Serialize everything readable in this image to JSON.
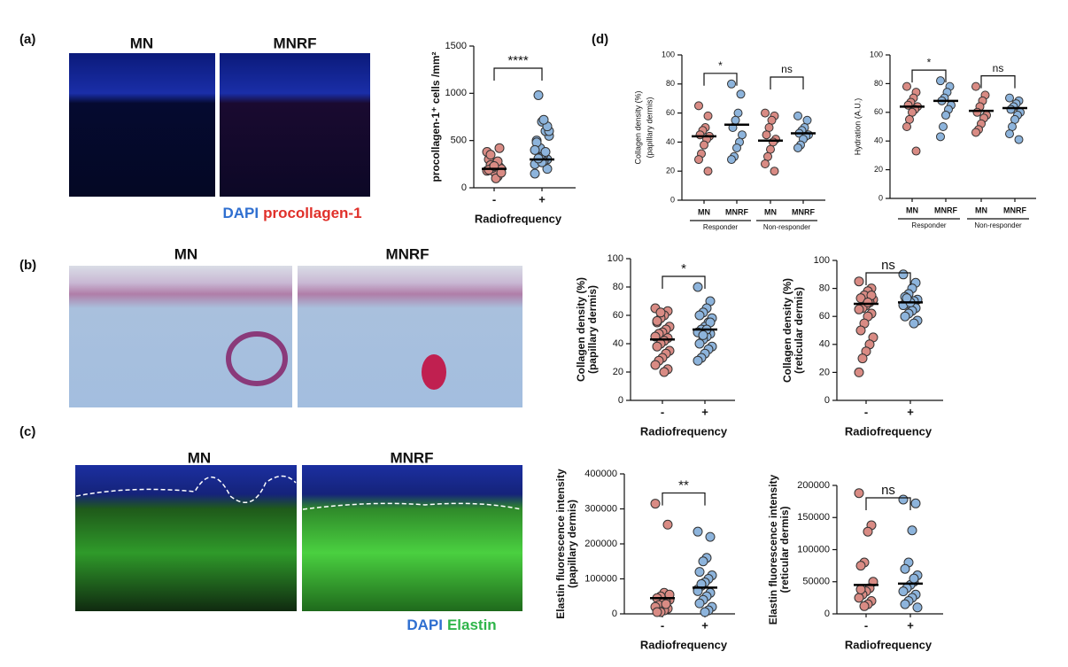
{
  "panel_labels": [
    "(a)",
    "(b)",
    "(c)",
    "(d)"
  ],
  "images": [
    {
      "title": "MN"
    },
    {
      "title": "MNRF"
    },
    {
      "title": "MN"
    },
    {
      "title": "MNRF"
    },
    {
      "title": "MN"
    },
    {
      "title": "MNRF"
    }
  ],
  "captions": [
    {
      "parts": [
        {
          "text": "DAPI",
          "color": "#2f6fd0"
        },
        {
          "text": "procollagen-1",
          "color": "#e0302a"
        }
      ]
    },
    {
      "parts": [
        {
          "text": "DAPI",
          "color": "#2f6fd0"
        },
        {
          "text": "Elastin",
          "color": "#2fb54a"
        }
      ]
    }
  ],
  "chart_data": [
    {
      "type": "dot",
      "ylabel": [
        "procollagen-1⁺ cells /mm²"
      ],
      "xlabel": "Radiofrequency",
      "categories": [
        "-",
        "+"
      ],
      "point_colors": [
        "#d98b84",
        "#8db4dc"
      ],
      "ylim": [
        0,
        1500
      ],
      "yticks": [
        0,
        500,
        1000,
        1500
      ],
      "groups": [
        {
          "values": [
            180,
            220,
            150,
            260,
            300,
            200,
            120,
            170,
            240,
            380,
            420,
            100,
            210,
            190,
            160,
            280,
            230,
            350
          ],
          "mean": 200
        },
        {
          "values": [
            250,
            300,
            350,
            420,
            500,
            550,
            600,
            700,
            980,
            150,
            200,
            280,
            320,
            480,
            600,
            380,
            270,
            310,
            400,
            650,
            720
          ],
          "mean": 300
        }
      ],
      "brackets": [
        {
          "label": "****",
          "from": 0,
          "to": 1
        }
      ]
    },
    {
      "type": "dot",
      "ylabel": [
        "Collagen  density (%)",
        "(papillary dermis)"
      ],
      "categories": [
        "MN",
        "MNRF",
        "MN",
        "MNRF"
      ],
      "group_labels": [
        "Responder",
        "Non-responder"
      ],
      "point_colors": [
        "#d98b84",
        "#8db4dc",
        "#d98b84",
        "#8db4dc"
      ],
      "ylim": [
        0,
        100
      ],
      "yticks": [
        0,
        20,
        40,
        60,
        80,
        100
      ],
      "groups": [
        {
          "values": [
            65,
            58,
            50,
            48,
            45,
            44,
            42,
            38,
            32,
            28,
            20
          ],
          "mean": 44
        },
        {
          "values": [
            80,
            73,
            60,
            55,
            50,
            45,
            40,
            36,
            30,
            28
          ],
          "mean": 52
        },
        {
          "values": [
            60,
            58,
            55,
            50,
            45,
            42,
            40,
            35,
            30,
            25,
            20
          ],
          "mean": 41
        },
        {
          "values": [
            58,
            55,
            50,
            48,
            46,
            45,
            44,
            42,
            38,
            36
          ],
          "mean": 46
        }
      ],
      "brackets": [
        {
          "label": "*",
          "from": 0,
          "to": 1
        },
        {
          "label": "ns",
          "from": 2,
          "to": 3
        }
      ]
    },
    {
      "type": "dot",
      "ylabel": [
        "Hydration (A.U.)"
      ],
      "categories": [
        "MN",
        "MNRF",
        "MN",
        "MNRF"
      ],
      "group_labels": [
        "Responder",
        "Non-responder"
      ],
      "point_colors": [
        "#d98b84",
        "#8db4dc",
        "#d98b84",
        "#8db4dc"
      ],
      "ylim": [
        0,
        100
      ],
      "yticks": [
        0,
        20,
        40,
        60,
        80,
        100
      ],
      "groups": [
        {
          "values": [
            78,
            74,
            70,
            67,
            65,
            64,
            62,
            60,
            55,
            50,
            33
          ],
          "mean": 64
        },
        {
          "values": [
            82,
            78,
            74,
            70,
            68,
            65,
            62,
            58,
            50,
            43
          ],
          "mean": 68
        },
        {
          "values": [
            78,
            72,
            68,
            64,
            60,
            58,
            56,
            52,
            48,
            46
          ],
          "mean": 61
        },
        {
          "values": [
            70,
            68,
            66,
            64,
            62,
            60,
            58,
            55,
            50,
            45,
            41
          ],
          "mean": 63
        }
      ],
      "brackets": [
        {
          "label": "*",
          "from": 0,
          "to": 1
        },
        {
          "label": "ns",
          "from": 2,
          "to": 3
        }
      ]
    },
    {
      "type": "dot",
      "ylabel": [
        "Collagen  density (%)",
        "(papillary dermis)"
      ],
      "xlabel": "Radiofrequency",
      "categories": [
        "-",
        "+"
      ],
      "point_colors": [
        "#d98b84",
        "#8db4dc"
      ],
      "ylim": [
        0,
        100
      ],
      "yticks": [
        0,
        20,
        40,
        60,
        80,
        100
      ],
      "groups": [
        {
          "values": [
            65,
            63,
            60,
            58,
            55,
            52,
            50,
            48,
            47,
            45,
            44,
            42,
            40,
            38,
            35,
            33,
            30,
            28,
            25,
            22,
            20,
            62,
            56
          ],
          "mean": 43
        },
        {
          "values": [
            80,
            70,
            65,
            62,
            60,
            58,
            55,
            52,
            50,
            48,
            47,
            45,
            43,
            40,
            38,
            36,
            33,
            30,
            28,
            55,
            50,
            46
          ],
          "mean": 50
        }
      ],
      "brackets": [
        {
          "label": "*",
          "from": 0,
          "to": 1
        }
      ]
    },
    {
      "type": "dot",
      "ylabel": [
        "Collagen  density (%)",
        "(reticular dermis)"
      ],
      "xlabel": "Radiofrequency",
      "categories": [
        "-",
        "+"
      ],
      "point_colors": [
        "#d98b84",
        "#8db4dc"
      ],
      "ylim": [
        0,
        100
      ],
      "yticks": [
        0,
        20,
        40,
        60,
        80,
        100
      ],
      "groups": [
        {
          "values": [
            85,
            80,
            78,
            75,
            73,
            72,
            70,
            68,
            66,
            65,
            62,
            60,
            55,
            50,
            45,
            40,
            35,
            30,
            20,
            75,
            70
          ],
          "mean": 69
        },
        {
          "values": [
            90,
            84,
            80,
            76,
            74,
            72,
            71,
            70,
            69,
            68,
            66,
            64,
            62,
            60,
            57,
            55,
            70,
            73
          ],
          "mean": 70
        }
      ],
      "brackets": [
        {
          "label": "ns",
          "from": 0,
          "to": 1
        }
      ]
    },
    {
      "type": "dot",
      "ylabel": [
        "Elastin fluorescence intensity",
        "(papillary dermis)"
      ],
      "xlabel": "Radiofrequency",
      "categories": [
        "-",
        "+"
      ],
      "point_colors": [
        "#d98b84",
        "#8db4dc"
      ],
      "ylim": [
        0,
        400000
      ],
      "yticks": [
        0,
        100000,
        200000,
        300000,
        400000
      ],
      "groups": [
        {
          "values": [
            315000,
            255000,
            60000,
            50000,
            45000,
            40000,
            35000,
            30000,
            25000,
            20000,
            15000,
            10000,
            5000,
            5000,
            55000,
            28000
          ],
          "mean": 45000
        },
        {
          "values": [
            235000,
            220000,
            160000,
            150000,
            120000,
            110000,
            100000,
            90000,
            80000,
            70000,
            60000,
            50000,
            40000,
            30000,
            20000,
            10000,
            5000,
            85000,
            65000
          ],
          "mean": 75000
        }
      ],
      "brackets": [
        {
          "label": "**",
          "from": 0,
          "to": 1
        }
      ]
    },
    {
      "type": "dot",
      "ylabel": [
        "Elastin fluorescence intensity",
        "(reticular dermis)"
      ],
      "xlabel": "Radiofrequency",
      "categories": [
        "-",
        "+"
      ],
      "point_colors": [
        "#d98b84",
        "#8db4dc"
      ],
      "ylim": [
        0,
        200000
      ],
      "yticks": [
        0,
        50000,
        100000,
        150000,
        200000
      ],
      "groups": [
        {
          "values": [
            188000,
            138000,
            128000,
            80000,
            75000,
            50000,
            40000,
            35000,
            30000,
            25000,
            20000,
            15000,
            12000,
            38000
          ],
          "mean": 45000
        },
        {
          "values": [
            178000,
            172000,
            130000,
            80000,
            70000,
            60000,
            50000,
            45000,
            40000,
            35000,
            30000,
            25000,
            20000,
            15000,
            10000,
            55000
          ],
          "mean": 47000
        }
      ],
      "brackets": [
        {
          "label": "ns",
          "from": 0,
          "to": 1
        }
      ]
    }
  ]
}
